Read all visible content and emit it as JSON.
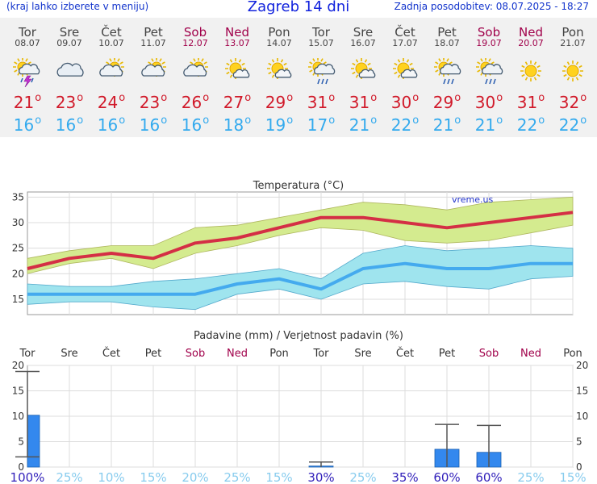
{
  "header": {
    "left_note": "(kraj lahko izberete v meniju)",
    "title": "Zagreb 14 dni",
    "updated": "Zadnja posodobitev: 08.07.2025 - 18:27"
  },
  "days": [
    {
      "name": "Tor",
      "date": "08.07",
      "icon": "sun-cloud-thunder-icon",
      "max": "21",
      "min": "16",
      "weekend": false
    },
    {
      "name": "Sre",
      "date": "09.07",
      "icon": "cloud-icon",
      "max": "23",
      "min": "16",
      "weekend": false
    },
    {
      "name": "Čet",
      "date": "10.07",
      "icon": "sun-cloud-icon",
      "max": "24",
      "min": "16",
      "weekend": false
    },
    {
      "name": "Pet",
      "date": "11.07",
      "icon": "sun-cloud-icon",
      "max": "23",
      "min": "16",
      "weekend": false
    },
    {
      "name": "Sob",
      "date": "12.07",
      "icon": "sun-cloud-icon",
      "max": "26",
      "min": "16",
      "weekend": true
    },
    {
      "name": "Ned",
      "date": "13.07",
      "icon": "sun-small-cloud-icon",
      "max": "27",
      "min": "18",
      "weekend": true
    },
    {
      "name": "Pon",
      "date": "14.07",
      "icon": "sun-small-cloud-icon",
      "max": "29",
      "min": "19",
      "weekend": false
    },
    {
      "name": "Tor",
      "date": "15.07",
      "icon": "sun-cloud-rain-icon",
      "max": "31",
      "min": "17",
      "weekend": false
    },
    {
      "name": "Sre",
      "date": "16.07",
      "icon": "sun-small-cloud-icon",
      "max": "31",
      "min": "21",
      "weekend": false
    },
    {
      "name": "Čet",
      "date": "17.07",
      "icon": "sun-small-cloud-icon",
      "max": "30",
      "min": "22",
      "weekend": false
    },
    {
      "name": "Pet",
      "date": "18.07",
      "icon": "sun-cloud-rain-icon",
      "max": "29",
      "min": "21",
      "weekend": false
    },
    {
      "name": "Sob",
      "date": "19.07",
      "icon": "sun-cloud-rain-icon",
      "max": "30",
      "min": "21",
      "weekend": true
    },
    {
      "name": "Ned",
      "date": "20.07",
      "icon": "sun-icon",
      "max": "31",
      "min": "22",
      "weekend": true
    },
    {
      "name": "Pon",
      "date": "21.07",
      "icon": "sun-icon",
      "max": "32",
      "min": "22",
      "weekend": false
    }
  ],
  "degree_symbol": "o",
  "colors": {
    "max_line": "#d42f45",
    "max_band": "#d4eb8f",
    "min_line": "#44aaee",
    "min_band": "#9fe4ee",
    "precip_bar": "#3388ee",
    "weekend": "#a0004a",
    "prob_high": "#3322bb",
    "prob_low": "#88ccee"
  },
  "chart_data": [
    {
      "type": "line",
      "title": "Temperatura (°C)",
      "watermark": "vreme.us",
      "categories": [
        "Tor",
        "Sre",
        "Čet",
        "Pet",
        "Sob",
        "Ned",
        "Pon",
        "Tor",
        "Sre",
        "Čet",
        "Pet",
        "Sob",
        "Ned",
        "Pon"
      ],
      "ylim": [
        12,
        36
      ],
      "yticks": [
        15,
        20,
        25,
        30,
        35
      ],
      "series": [
        {
          "role": "max",
          "values": [
            21,
            23,
            24,
            23,
            26,
            27,
            29,
            31,
            31,
            30,
            29,
            30,
            31,
            32
          ],
          "low": [
            20,
            22,
            23,
            21,
            24,
            25.5,
            27.5,
            29,
            28.5,
            26.5,
            26,
            26.5,
            28,
            29.5
          ],
          "high": [
            23,
            24.5,
            25.5,
            25.5,
            29,
            29.5,
            31,
            32.5,
            34,
            33.5,
            32.5,
            34,
            34.5,
            35
          ]
        },
        {
          "role": "min",
          "values": [
            16,
            16,
            16,
            16,
            16,
            18,
            19,
            17,
            21,
            22,
            21,
            21,
            22,
            22
          ],
          "low": [
            14,
            14.5,
            14.5,
            13.5,
            13,
            16,
            17,
            15,
            18,
            18.5,
            17.5,
            17,
            19,
            19.5
          ],
          "high": [
            18,
            17.5,
            17.5,
            18.5,
            19,
            20,
            21,
            19,
            24,
            25.5,
            24.5,
            25,
            25.5,
            25
          ]
        }
      ]
    },
    {
      "type": "bar",
      "title": "Padavine (mm) / Verjetnost padavin (%)",
      "categories": [
        "Tor",
        "Sre",
        "Čet",
        "Pet",
        "Sob",
        "Ned",
        "Pon",
        "Tor",
        "Sre",
        "Čet",
        "Pet",
        "Sob",
        "Ned",
        "Pon"
      ],
      "ylim": [
        0,
        20
      ],
      "yticks": [
        0,
        5,
        10,
        15,
        20
      ],
      "values": [
        10.2,
        0,
        0,
        0,
        0,
        0,
        0,
        0.2,
        0,
        0,
        3.5,
        2.9,
        0,
        0
      ],
      "err_low": [
        2,
        0,
        0,
        0,
        0,
        0,
        0,
        0,
        0,
        0,
        0,
        0,
        0,
        0
      ],
      "err_high": [
        18.8,
        0,
        0,
        0,
        0,
        0,
        0,
        1,
        0,
        0,
        8.4,
        8.2,
        0,
        0
      ],
      "probability": [
        "100%",
        "25%",
        "10%",
        "15%",
        "20%",
        "25%",
        "15%",
        "30%",
        "25%",
        "35%",
        "60%",
        "60%",
        "25%",
        "15%"
      ]
    }
  ]
}
